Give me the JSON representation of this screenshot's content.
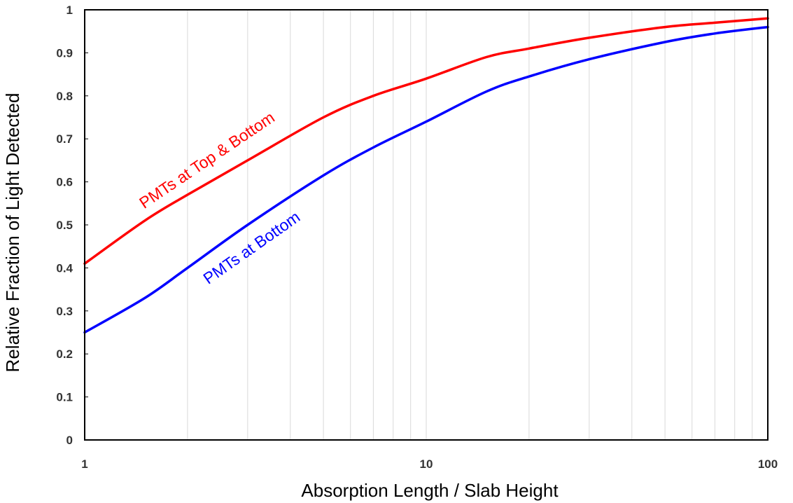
{
  "chart_data": {
    "type": "line",
    "x_scale": "log",
    "xlabel": "Absorption Length / Slab Height",
    "ylabel": "Relative Fraction of Light Detected",
    "xlim": [
      1,
      100
    ],
    "ylim": [
      0,
      1
    ],
    "x_ticks": [
      "1",
      "10",
      "100"
    ],
    "y_ticks": [
      "0",
      "0.1",
      "0.2",
      "0.3",
      "0.4",
      "0.5",
      "0.6",
      "0.7",
      "0.8",
      "0.9",
      "1"
    ],
    "grid": "vertical minor log gridlines",
    "series": [
      {
        "name": "PMTs at Top & Bottom",
        "color": "#ff0000",
        "x": [
          1,
          1.5,
          2,
          3,
          5,
          7,
          10,
          15,
          20,
          30,
          50,
          70,
          100
        ],
        "y": [
          0.41,
          0.51,
          0.57,
          0.65,
          0.75,
          0.8,
          0.84,
          0.89,
          0.91,
          0.935,
          0.96,
          0.97,
          0.98
        ]
      },
      {
        "name": "PMTs at Bottom",
        "color": "#0000ff",
        "x": [
          1,
          1.5,
          2,
          3,
          5,
          7,
          10,
          15,
          20,
          30,
          50,
          70,
          100
        ],
        "y": [
          0.25,
          0.33,
          0.4,
          0.5,
          0.615,
          0.68,
          0.74,
          0.81,
          0.845,
          0.885,
          0.925,
          0.945,
          0.96
        ]
      }
    ]
  }
}
